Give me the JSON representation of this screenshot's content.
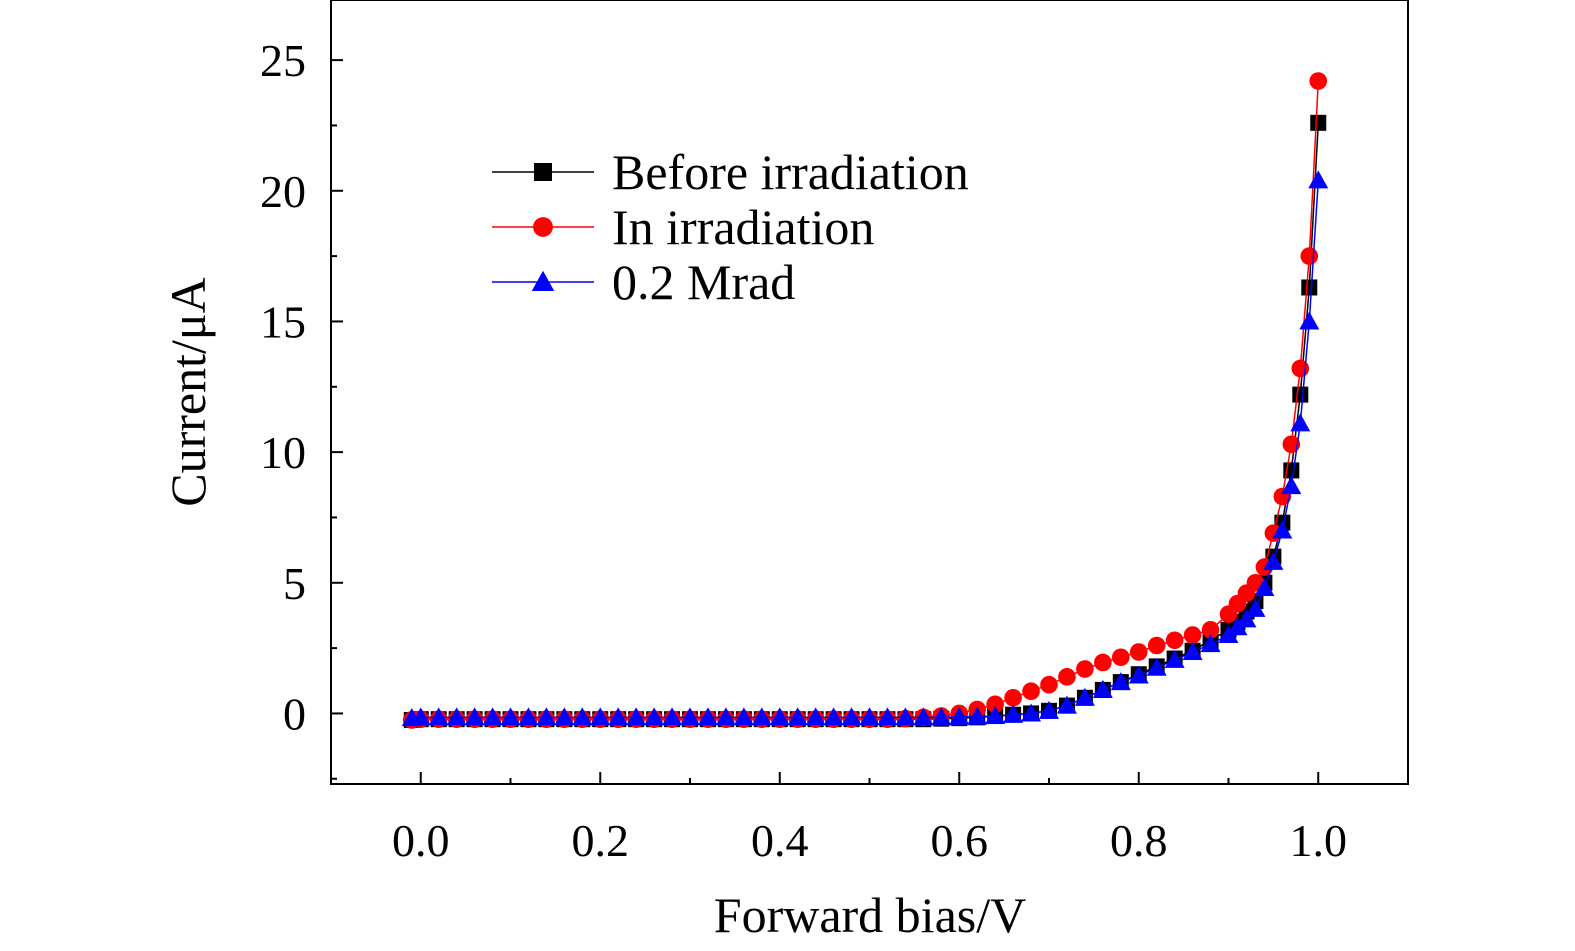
{
  "chart_data": {
    "type": "line",
    "title": "",
    "xlabel": "Forward bias/V",
    "ylabel": "Current/μA",
    "xlim": [
      -0.1,
      1.1
    ],
    "ylim": [
      -2.7,
      27.3
    ],
    "x_ticks": [
      "0.0",
      "0.2",
      "0.4",
      "0.6",
      "0.8",
      "1.0"
    ],
    "x_tick_values": [
      0.0,
      0.2,
      0.4,
      0.6,
      0.8,
      1.0
    ],
    "y_ticks": [
      "0",
      "5",
      "10",
      "15",
      "20",
      "25"
    ],
    "y_tick_values": [
      0,
      5,
      10,
      15,
      20,
      25
    ],
    "legend_position": "top-left",
    "grid": false,
    "series": [
      {
        "name": "Before irradiation",
        "color": "#000000",
        "marker": "square",
        "x": [
          -0.01,
          0.0,
          0.02,
          0.04,
          0.06,
          0.08,
          0.1,
          0.12,
          0.14,
          0.16,
          0.18,
          0.2,
          0.22,
          0.24,
          0.26,
          0.28,
          0.3,
          0.32,
          0.34,
          0.36,
          0.38,
          0.4,
          0.42,
          0.44,
          0.46,
          0.48,
          0.5,
          0.52,
          0.54,
          0.56,
          0.58,
          0.6,
          0.62,
          0.64,
          0.66,
          0.68,
          0.7,
          0.72,
          0.74,
          0.76,
          0.78,
          0.8,
          0.82,
          0.84,
          0.86,
          0.88,
          0.9,
          0.91,
          0.92,
          0.93,
          0.94,
          0.95,
          0.96,
          0.97,
          0.98,
          0.99,
          1.0
        ],
        "y": [
          -0.25,
          -0.22,
          -0.22,
          -0.22,
          -0.22,
          -0.22,
          -0.22,
          -0.22,
          -0.22,
          -0.22,
          -0.22,
          -0.22,
          -0.22,
          -0.22,
          -0.22,
          -0.22,
          -0.22,
          -0.22,
          -0.22,
          -0.22,
          -0.22,
          -0.22,
          -0.22,
          -0.22,
          -0.22,
          -0.22,
          -0.22,
          -0.22,
          -0.22,
          -0.22,
          -0.2,
          -0.18,
          -0.15,
          -0.1,
          -0.05,
          0.0,
          0.1,
          0.3,
          0.6,
          0.9,
          1.2,
          1.5,
          1.8,
          2.1,
          2.4,
          2.8,
          3.2,
          3.5,
          3.9,
          4.3,
          5.0,
          6.0,
          7.3,
          9.3,
          12.2,
          16.3,
          22.6
        ]
      },
      {
        "name": "In irradiation",
        "color": "#ff0000",
        "marker": "circle",
        "x": [
          -0.01,
          0.0,
          0.02,
          0.04,
          0.06,
          0.08,
          0.1,
          0.12,
          0.14,
          0.16,
          0.18,
          0.2,
          0.22,
          0.24,
          0.26,
          0.28,
          0.3,
          0.32,
          0.34,
          0.36,
          0.38,
          0.4,
          0.42,
          0.44,
          0.46,
          0.48,
          0.5,
          0.52,
          0.54,
          0.56,
          0.58,
          0.6,
          0.62,
          0.64,
          0.66,
          0.68,
          0.7,
          0.72,
          0.74,
          0.76,
          0.78,
          0.8,
          0.82,
          0.84,
          0.86,
          0.88,
          0.9,
          0.91,
          0.92,
          0.93,
          0.94,
          0.95,
          0.96,
          0.97,
          0.98,
          0.99,
          1.0
        ],
        "y": [
          -0.25,
          -0.22,
          -0.22,
          -0.22,
          -0.22,
          -0.22,
          -0.22,
          -0.22,
          -0.22,
          -0.22,
          -0.22,
          -0.22,
          -0.22,
          -0.22,
          -0.22,
          -0.22,
          -0.22,
          -0.22,
          -0.22,
          -0.22,
          -0.22,
          -0.22,
          -0.22,
          -0.22,
          -0.22,
          -0.22,
          -0.22,
          -0.22,
          -0.2,
          -0.15,
          -0.1,
          0.0,
          0.15,
          0.35,
          0.6,
          0.85,
          1.1,
          1.4,
          1.7,
          1.95,
          2.15,
          2.35,
          2.6,
          2.8,
          3.0,
          3.2,
          3.8,
          4.2,
          4.6,
          5.0,
          5.6,
          6.9,
          8.3,
          10.3,
          13.2,
          17.5,
          24.2
        ]
      },
      {
        "name": "0.2 Mrad",
        "color": "#0000ff",
        "marker": "triangle",
        "x": [
          -0.01,
          0.0,
          0.02,
          0.04,
          0.06,
          0.08,
          0.1,
          0.12,
          0.14,
          0.16,
          0.18,
          0.2,
          0.22,
          0.24,
          0.26,
          0.28,
          0.3,
          0.32,
          0.34,
          0.36,
          0.38,
          0.4,
          0.42,
          0.44,
          0.46,
          0.48,
          0.5,
          0.52,
          0.54,
          0.56,
          0.58,
          0.6,
          0.62,
          0.64,
          0.66,
          0.68,
          0.7,
          0.72,
          0.74,
          0.76,
          0.78,
          0.8,
          0.82,
          0.84,
          0.86,
          0.88,
          0.9,
          0.91,
          0.92,
          0.93,
          0.94,
          0.95,
          0.96,
          0.97,
          0.98,
          0.99,
          1.0
        ],
        "y": [
          -0.18,
          -0.15,
          -0.15,
          -0.15,
          -0.15,
          -0.15,
          -0.15,
          -0.15,
          -0.15,
          -0.15,
          -0.15,
          -0.15,
          -0.15,
          -0.15,
          -0.15,
          -0.15,
          -0.15,
          -0.15,
          -0.15,
          -0.15,
          -0.15,
          -0.15,
          -0.15,
          -0.15,
          -0.15,
          -0.15,
          -0.15,
          -0.15,
          -0.15,
          -0.15,
          -0.15,
          -0.13,
          -0.12,
          -0.1,
          -0.05,
          0.0,
          0.1,
          0.3,
          0.6,
          0.9,
          1.2,
          1.45,
          1.75,
          2.05,
          2.35,
          2.65,
          3.0,
          3.3,
          3.6,
          4.0,
          4.8,
          5.8,
          7.0,
          8.7,
          11.1,
          15.0,
          20.4
        ]
      }
    ]
  }
}
